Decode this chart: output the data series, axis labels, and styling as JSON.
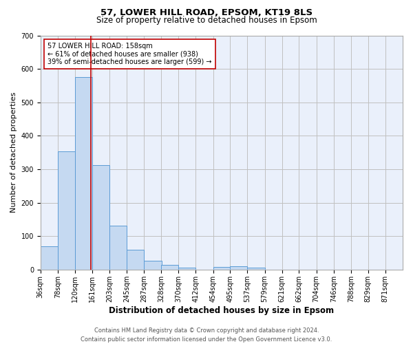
{
  "title1": "57, LOWER HILL ROAD, EPSOM, KT19 8LS",
  "title2": "Size of property relative to detached houses in Epsom",
  "xlabel": "Distribution of detached houses by size in Epsom",
  "ylabel": "Number of detached properties",
  "bin_labels": [
    "36sqm",
    "78sqm",
    "120sqm",
    "161sqm",
    "203sqm",
    "245sqm",
    "287sqm",
    "328sqm",
    "370sqm",
    "412sqm",
    "454sqm",
    "495sqm",
    "537sqm",
    "579sqm",
    "621sqm",
    "662sqm",
    "704sqm",
    "746sqm",
    "788sqm",
    "829sqm",
    "871sqm"
  ],
  "bin_edges": [
    36,
    78,
    120,
    161,
    203,
    245,
    287,
    328,
    370,
    412,
    454,
    495,
    537,
    579,
    621,
    662,
    704,
    746,
    788,
    829,
    871
  ],
  "bar_heights": [
    70,
    353,
    575,
    312,
    132,
    60,
    26,
    15,
    5,
    0,
    8,
    11,
    5,
    0,
    0,
    0,
    0,
    0,
    0,
    0
  ],
  "bar_color": "#c5d9f1",
  "bar_edgecolor": "#5b9bd5",
  "vline_x": 158,
  "vline_color": "#c00000",
  "annotation_text": "57 LOWER HILL ROAD: 158sqm\n← 61% of detached houses are smaller (938)\n39% of semi-detached houses are larger (599) →",
  "ylim": [
    0,
    700
  ],
  "yticks": [
    0,
    100,
    200,
    300,
    400,
    500,
    600,
    700
  ],
  "grid_color": "#c0c0c0",
  "background_color": "#eaf0fb",
  "footer": "Contains HM Land Registry data © Crown copyright and database right 2024.\nContains public sector information licensed under the Open Government Licence v3.0.",
  "title1_fontsize": 9.5,
  "title2_fontsize": 8.5,
  "xlabel_fontsize": 8.5,
  "ylabel_fontsize": 8,
  "tick_fontsize": 7,
  "annotation_fontsize": 7,
  "footer_fontsize": 6
}
